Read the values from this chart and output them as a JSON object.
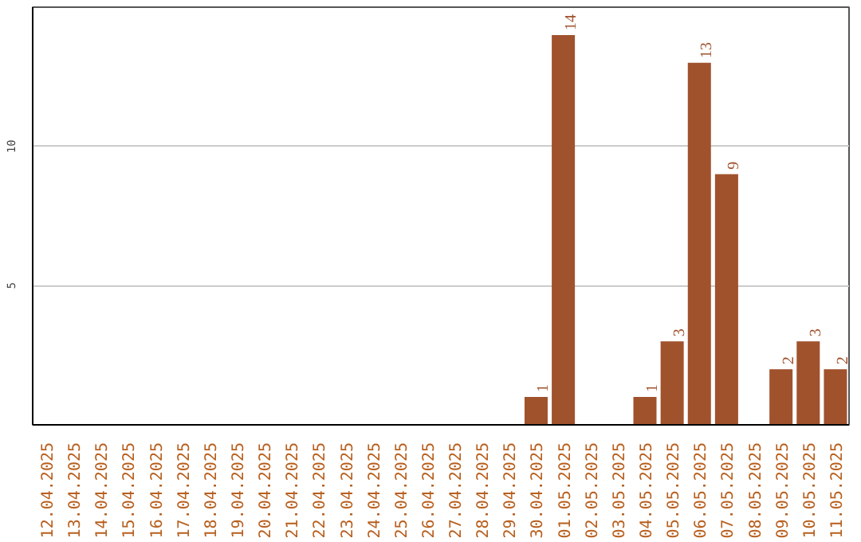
{
  "chart_data": {
    "type": "bar",
    "categories": [
      "12.04.2025",
      "13.04.2025",
      "14.04.2025",
      "15.04.2025",
      "16.04.2025",
      "17.04.2025",
      "18.04.2025",
      "19.04.2025",
      "20.04.2025",
      "21.04.2025",
      "22.04.2025",
      "23.04.2025",
      "24.04.2025",
      "25.04.2025",
      "26.04.2025",
      "27.04.2025",
      "28.04.2025",
      "29.04.2025",
      "30.04.2025",
      "01.05.2025",
      "02.05.2025",
      "03.05.2025",
      "04.05.2025",
      "05.05.2025",
      "06.05.2025",
      "07.05.2025",
      "08.05.2025",
      "09.05.2025",
      "10.05.2025",
      "11.05.2025"
    ],
    "values": [
      0,
      0,
      0,
      0,
      0,
      0,
      0,
      0,
      0,
      0,
      0,
      0,
      0,
      0,
      0,
      0,
      0,
      0,
      1,
      14,
      0,
      0,
      1,
      3,
      13,
      9,
      0,
      2,
      3,
      2
    ],
    "value_labels": [
      null,
      null,
      null,
      null,
      null,
      null,
      null,
      null,
      null,
      null,
      null,
      null,
      null,
      null,
      null,
      null,
      null,
      null,
      "1",
      "14",
      null,
      null,
      "1",
      "3",
      "13",
      "9",
      null,
      "2",
      "3",
      "2"
    ],
    "color": "#a0522d",
    "ylim": [
      0,
      15
    ],
    "yticks": [
      5,
      10
    ],
    "grid": "y"
  }
}
